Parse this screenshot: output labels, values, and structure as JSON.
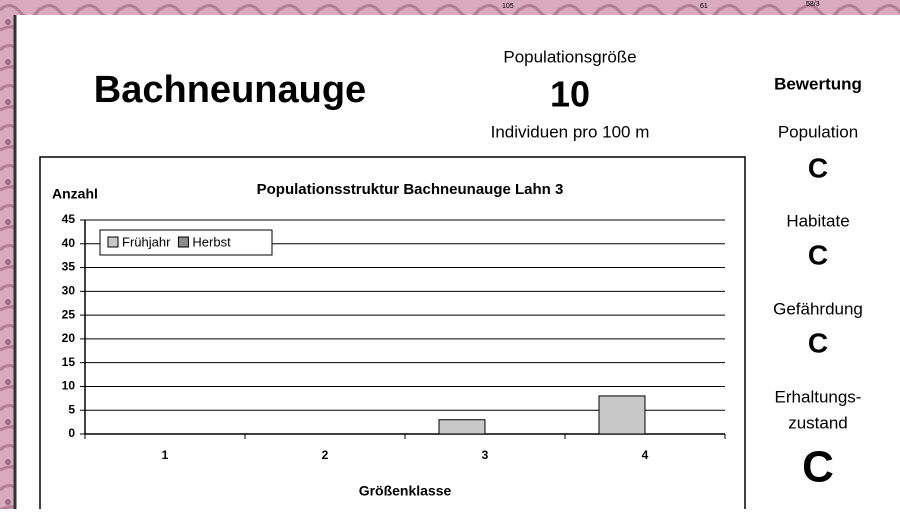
{
  "map_labels": [
    "105",
    "61",
    "58/3"
  ],
  "header": {
    "species": "Bachneunauge",
    "population_size_label": "Populationsgröße",
    "population_size": "10",
    "population_size_unit": "Individuen pro 100 m"
  },
  "rating": {
    "title": "Bewertung",
    "items": [
      {
        "label": [
          "Population"
        ],
        "grade": "C"
      },
      {
        "label": [
          "Habitate"
        ],
        "grade": "C"
      },
      {
        "label": [
          "Gefährdung"
        ],
        "grade": "C"
      },
      {
        "label": [
          "Erhaltungs-",
          "zustand"
        ],
        "grade": "C"
      }
    ]
  },
  "chart_data": {
    "type": "bar",
    "title": "Populationsstruktur Bachneunauge Lahn 3",
    "y_label": "Anzahl",
    "x_label": "Größenklasse",
    "categories": [
      "1",
      "2",
      "3",
      "4"
    ],
    "series": [
      {
        "name": "Frühjahr",
        "color": "#c8c8c8",
        "values": [
          0,
          0,
          3,
          8
        ]
      },
      {
        "name": "Herbst",
        "color": "#8c8c8c",
        "values": [
          0,
          0,
          0,
          0
        ]
      }
    ],
    "ylim": [
      0,
      45
    ],
    "yticks": [
      0,
      5,
      10,
      15,
      20,
      25,
      30,
      35,
      40,
      45
    ],
    "grid": true,
    "legend": "top-left"
  }
}
